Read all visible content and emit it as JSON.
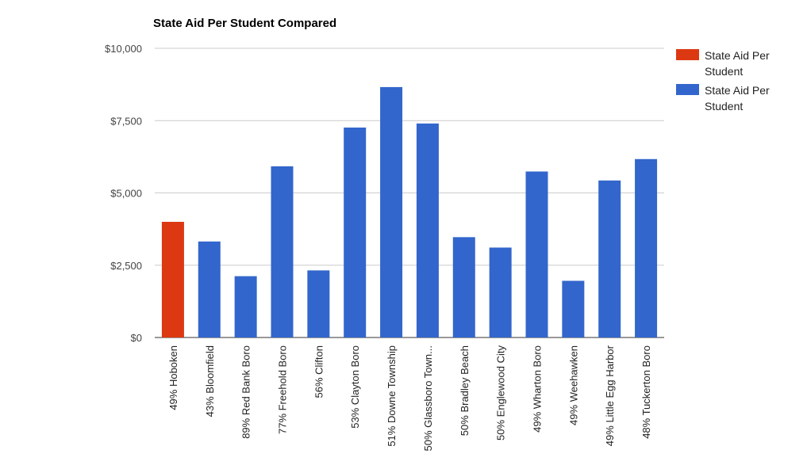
{
  "chart_data": {
    "type": "bar",
    "title": "State Aid Per Student Compared",
    "xlabel": "",
    "ylabel": "",
    "ylim": [
      0,
      10000
    ],
    "yticks": [
      0,
      2500,
      5000,
      7500,
      10000
    ],
    "ytick_labels": [
      "$0",
      "$2,500",
      "$5,000",
      "$7,500",
      "$10,000"
    ],
    "grid": true,
    "legend_position": "right",
    "categories": [
      "49% Hoboken",
      "43% Bloomfield",
      "89% Red Bank Boro",
      "77% Freehold Boro",
      "56% Clifton",
      "53% Clayton Boro",
      "51% Downe Township",
      "50% Glassboro Town...",
      "50% Bradley Beach",
      "50% Englewood City",
      "49% Wharton Boro",
      "49% Weehawken",
      "49% Little Egg Harbor",
      "48% Tuckerton Boro"
    ],
    "series": [
      {
        "name": "State Aid Per Student",
        "color": "#dc3912",
        "values": [
          4000,
          null,
          null,
          null,
          null,
          null,
          null,
          null,
          null,
          null,
          null,
          null,
          null,
          null
        ]
      },
      {
        "name": "State Aid Per Student",
        "color": "#3366cc",
        "values": [
          null,
          3320,
          2120,
          5920,
          2320,
          7260,
          8660,
          7400,
          3470,
          3110,
          5740,
          1960,
          5430,
          6170
        ]
      }
    ]
  }
}
